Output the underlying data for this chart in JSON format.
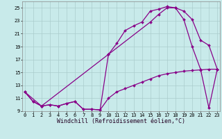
{
  "background_color": "#c8eaea",
  "line_color": "#880088",
  "grid_color": "#aacccc",
  "xlim": [
    -0.3,
    23.3
  ],
  "ylim": [
    9,
    26
  ],
  "yticks": [
    9,
    11,
    13,
    15,
    17,
    19,
    21,
    23,
    25
  ],
  "xticks": [
    0,
    1,
    2,
    3,
    4,
    5,
    6,
    7,
    8,
    9,
    10,
    11,
    12,
    13,
    14,
    15,
    16,
    17,
    18,
    19,
    20,
    21,
    22,
    23
  ],
  "line1_x": [
    0,
    1,
    2,
    3,
    4,
    5,
    6,
    7,
    8,
    9,
    10,
    11,
    12,
    13,
    14,
    15,
    16,
    17,
    18,
    19,
    20,
    21,
    22,
    23
  ],
  "line1_y": [
    12.0,
    10.5,
    9.8,
    10.0,
    9.8,
    10.2,
    10.5,
    9.3,
    9.3,
    9.2,
    11.0,
    12.0,
    12.5,
    13.0,
    13.5,
    14.0,
    14.5,
    14.8,
    15.0,
    15.2,
    15.3,
    15.4,
    15.5,
    15.5
  ],
  "line2_x": [
    0,
    1,
    2,
    3,
    4,
    5,
    6,
    7,
    8,
    9,
    10,
    11,
    12,
    13,
    14,
    15,
    16,
    17,
    18,
    19,
    20,
    21,
    22,
    23
  ],
  "line2_y": [
    12.0,
    10.5,
    9.8,
    10.0,
    9.8,
    10.2,
    10.5,
    9.3,
    9.3,
    9.2,
    17.8,
    19.5,
    21.5,
    22.2,
    22.8,
    24.5,
    24.8,
    25.2,
    25.0,
    23.2,
    19.0,
    15.5,
    9.5,
    15.5
  ],
  "line3_x": [
    0,
    2,
    10,
    15,
    16,
    17,
    18,
    19,
    20,
    21,
    22,
    23
  ],
  "line3_y": [
    12.0,
    9.8,
    17.8,
    22.8,
    24.0,
    25.0,
    25.0,
    24.5,
    23.2,
    20.0,
    19.2,
    15.5
  ],
  "xlabel": "Windchill (Refroidissement éolien,°C)",
  "marker": "D",
  "markersize": 2.0,
  "linewidth": 0.9,
  "tick_fontsize": 5.0,
  "xlabel_fontsize": 6.0
}
